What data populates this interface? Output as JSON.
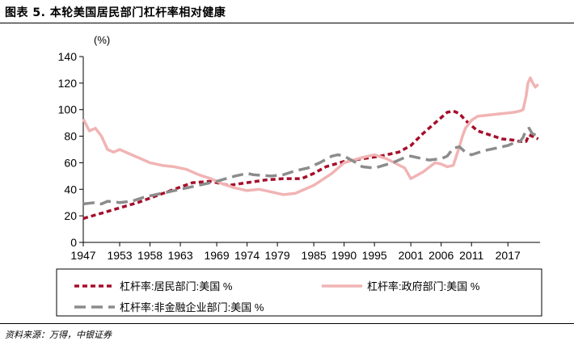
{
  "figure": {
    "title": "图表 5. 本轮美国居民部门杠杆率相对健康",
    "source": "资料来源：万得，中银证券"
  },
  "chart_data": {
    "type": "line",
    "ylabel": "(%)",
    "ylim": [
      0,
      140
    ],
    "yticks": [
      0,
      20,
      40,
      60,
      80,
      100,
      120,
      140
    ],
    "xlim": [
      1947,
      2022.3
    ],
    "xticks": [
      "1947",
      "1953",
      "1958",
      "1963",
      "1969",
      "1974",
      "1979",
      "1985",
      "1990",
      "1995",
      "2001",
      "2006",
      "2011",
      "2017"
    ],
    "grid": false,
    "legend_position": "bottom, boxed",
    "series": [
      {
        "name": "杠杆率:居民部门:美国 %",
        "color": "#a50f2a",
        "style": "short-dash",
        "x": [
          1947,
          1950,
          1953,
          1956,
          1959,
          1962,
          1965,
          1968,
          1971,
          1974,
          1977,
          1980,
          1983,
          1985,
          1987,
          1990,
          1993,
          1996,
          1999,
          2001,
          2003,
          2005,
          2007,
          2008,
          2009,
          2010,
          2012,
          2014,
          2016,
          2018,
          2019,
          2020,
          2020.5,
          2021,
          2021.5,
          2022
        ],
        "y": [
          18,
          22,
          26,
          30,
          35,
          40,
          45,
          46,
          43,
          45,
          47,
          48,
          48,
          52,
          57,
          61,
          63,
          65,
          68,
          73,
          82,
          90,
          98,
          99,
          97,
          92,
          84,
          81,
          78,
          77,
          76,
          76,
          81,
          80,
          79,
          78
        ]
      },
      {
        "name": "杠杆率:政府部门:美国 %",
        "color": "#f1b4b4",
        "style": "solid",
        "x": [
          1947,
          1948,
          1949,
          1950,
          1951,
          1952,
          1953,
          1955,
          1957,
          1958,
          1960,
          1962,
          1964,
          1966,
          1968,
          1970,
          1972,
          1974,
          1976,
          1978,
          1980,
          1982,
          1983,
          1985,
          1988,
          1990,
          1993,
          1995,
          1997,
          2000,
          2001,
          2003,
          2005,
          2006,
          2007,
          2008,
          2009,
          2009.5,
          2010,
          2011,
          2012,
          2014,
          2016,
          2018,
          2019,
          2019.5,
          2020,
          2020.3,
          2020.7,
          2021,
          2021.5,
          2022
        ],
        "y": [
          93,
          84,
          86,
          80,
          70,
          68,
          70,
          66,
          62,
          60,
          58,
          57,
          55,
          51,
          48,
          44,
          41,
          39,
          40,
          38,
          36,
          37,
          39,
          43,
          52,
          60,
          64,
          66,
          63,
          56,
          48,
          53,
          60,
          59,
          57,
          58,
          72,
          80,
          86,
          92,
          95,
          96,
          97,
          98,
          99,
          100,
          110,
          120,
          124,
          121,
          117,
          119
        ]
      },
      {
        "name": "杠杆率:非金融企业部门:美国 %",
        "color": "#8c8c8c",
        "style": "long-dash",
        "x": [
          1947,
          1949,
          1950,
          1951,
          1953,
          1955,
          1957,
          1960,
          1963,
          1966,
          1969,
          1972,
          1974,
          1975,
          1978,
          1980,
          1982,
          1984,
          1986,
          1988,
          1989,
          1990,
          1992,
          1993,
          1995,
          1998,
          2000,
          2001,
          2002,
          2004,
          2006,
          2007,
          2008,
          2009,
          2010,
          2011,
          2013,
          2015,
          2017,
          2018,
          2019,
          2019.5,
          2020,
          2020.5,
          2021,
          2022
        ],
        "y": [
          29,
          30,
          29,
          31,
          30,
          31,
          34,
          37,
          40,
          43,
          46,
          50,
          52,
          51,
          50,
          51,
          54,
          56,
          60,
          65,
          66,
          65,
          60,
          57,
          56,
          60,
          64,
          65,
          64,
          62,
          63,
          65,
          71,
          72,
          68,
          66,
          69,
          71,
          73,
          75,
          76,
          79,
          85,
          86,
          82,
          80
        ]
      }
    ]
  }
}
